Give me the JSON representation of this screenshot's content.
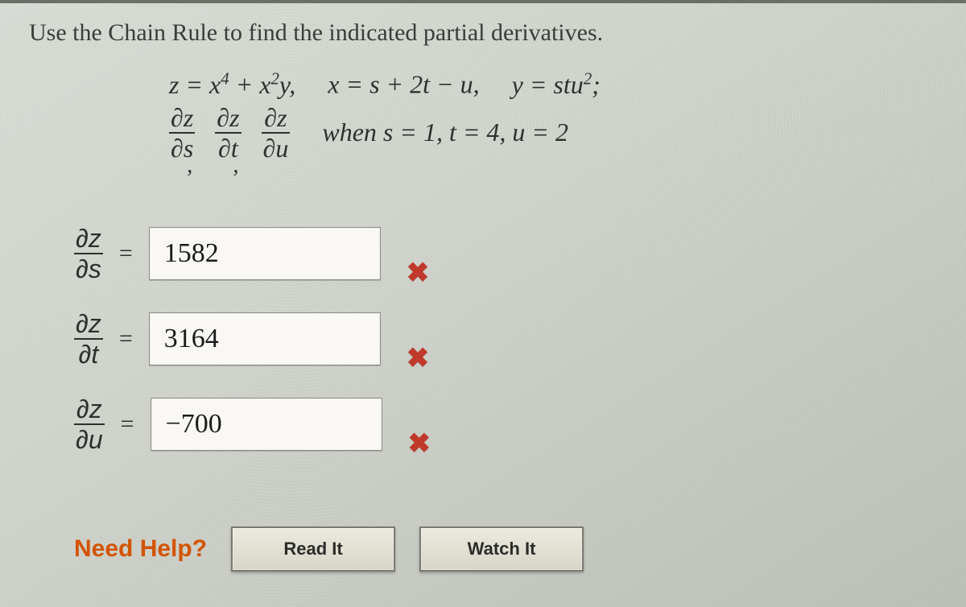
{
  "question": "Use the Chain Rule to find the indicated partial derivatives.",
  "formula": {
    "z_expr_html": "z = x<span class='sup'>4</span> + x<span class='sup'>2</span>y,",
    "x_expr": "x = s + 2t − u,",
    "y_expr_html": "y = stu<span class='sup'>2</span>;",
    "when_text": "when s = 1, t = 4, u = 2",
    "partials": [
      {
        "num": "∂z",
        "den": "∂s"
      },
      {
        "num": "∂z",
        "den": "∂t"
      },
      {
        "num": "∂z",
        "den": "∂u"
      }
    ]
  },
  "answers": [
    {
      "label_num": "∂z",
      "label_den": "∂s",
      "value": "1582",
      "status": "incorrect"
    },
    {
      "label_num": "∂z",
      "label_den": "∂t",
      "value": "3164",
      "status": "incorrect"
    },
    {
      "label_num": "∂z",
      "label_den": "∂u",
      "value": "−700",
      "status": "incorrect"
    }
  ],
  "help": {
    "label": "Need Help?",
    "read": "Read It",
    "watch": "Watch It"
  },
  "colors": {
    "incorrect": "#c0392b",
    "help_accent": "#d35400",
    "text": "#2e302c",
    "bg_top": "#d8dcd5",
    "bg_bottom": "#bcc0b8",
    "input_bg": "#faf8f5",
    "button_bg_top": "#eceadf",
    "button_bg_bottom": "#d9d6c8",
    "button_border": "#7a7a72"
  },
  "icons": {
    "incorrect_glyph": "✖"
  }
}
